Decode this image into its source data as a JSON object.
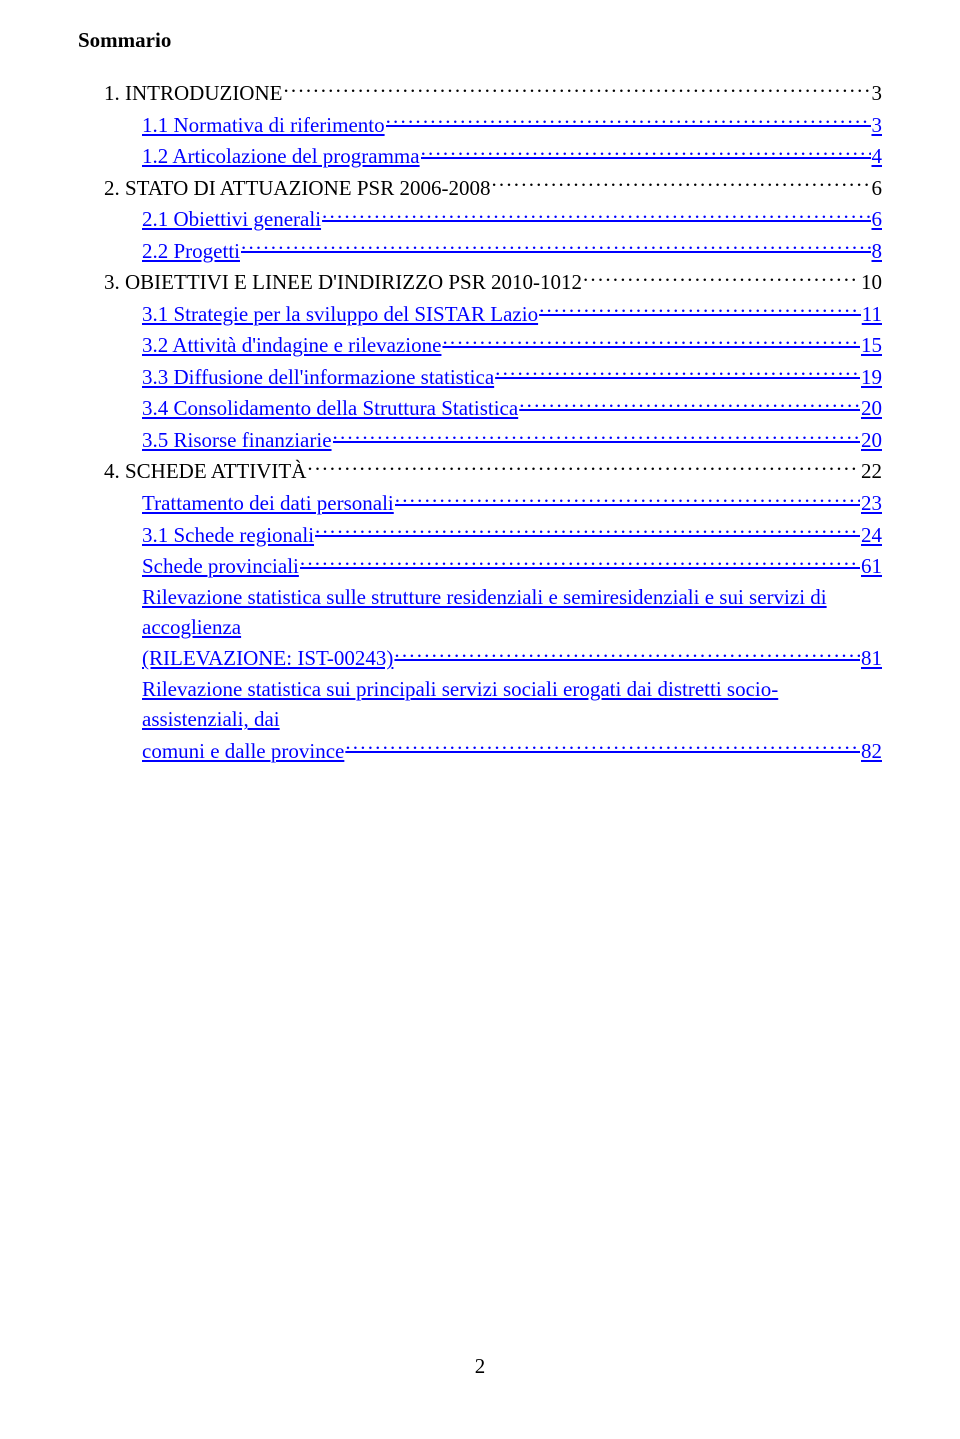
{
  "title": "Sommario",
  "page_number": "2",
  "colors": {
    "link": "#0000ff",
    "text": "#000000",
    "background": "#ffffff"
  },
  "toc": [
    {
      "label": "1. INTRODUZIONE",
      "page": "3",
      "indent": 0,
      "link": false
    },
    {
      "label": "1.1 Normativa di riferimento",
      "page": "3",
      "indent": 1,
      "link": true
    },
    {
      "label": "1.2 Articolazione  del programma",
      "page": "4",
      "indent": 1,
      "link": true
    },
    {
      "label": "2. STATO DI ATTUAZIONE PSR 2006-2008",
      "page": "6",
      "indent": 0,
      "link": false
    },
    {
      "label": "2.1 Obiettivi generali",
      "page": "6",
      "indent": 1,
      "link": true
    },
    {
      "label": "2.2 Progetti",
      "page": "8",
      "indent": 1,
      "link": true
    },
    {
      "label": "3. OBIETTIVI E LINEE D'INDIRIZZO PSR 2010-1012",
      "page": "10",
      "indent": 0,
      "link": false
    },
    {
      "label": "3.1 Strategie per la sviluppo del SISTAR Lazio ",
      "page": "11",
      "indent": 1,
      "link": true
    },
    {
      "label": "3.2 Attività d'indagine e rilevazione",
      "page": "15",
      "indent": 1,
      "link": true
    },
    {
      "label": "3.3  Diffusione dell'informazione statistica",
      "page": "19",
      "indent": 1,
      "link": true
    },
    {
      "label": "3.4 Consolidamento della Struttura Statistica",
      "page": "20",
      "indent": 1,
      "link": true
    },
    {
      "label": "3.5  Risorse finanziarie",
      "page": "20",
      "indent": 1,
      "link": true
    },
    {
      "label": "4. SCHEDE ATTIVITÀ ",
      "page": "22",
      "indent": 0,
      "link": false
    },
    {
      "label": "Trattamento dei dati personali",
      "page": "23",
      "indent": 1,
      "link": true
    },
    {
      "label": "3.1 Schede regionali",
      "page": "24",
      "indent": 1,
      "link": true
    },
    {
      "label": "Schede provinciali",
      "page": "61",
      "indent": 1,
      "link": true
    },
    {
      "label": "Rilevazione statistica sulle strutture residenziali e semiresidenziali e sui servizi di accoglienza ",
      "continuation": "(RILEVAZIONE: IST-00243)",
      "page": "81",
      "indent": 1,
      "link": true
    },
    {
      "label": "Rilevazione statistica sui principali servizi sociali erogati dai distretti socio-assistenziali, dai ",
      "continuation": "comuni e dalle province",
      "page": "82",
      "indent": 1,
      "link": true
    }
  ]
}
